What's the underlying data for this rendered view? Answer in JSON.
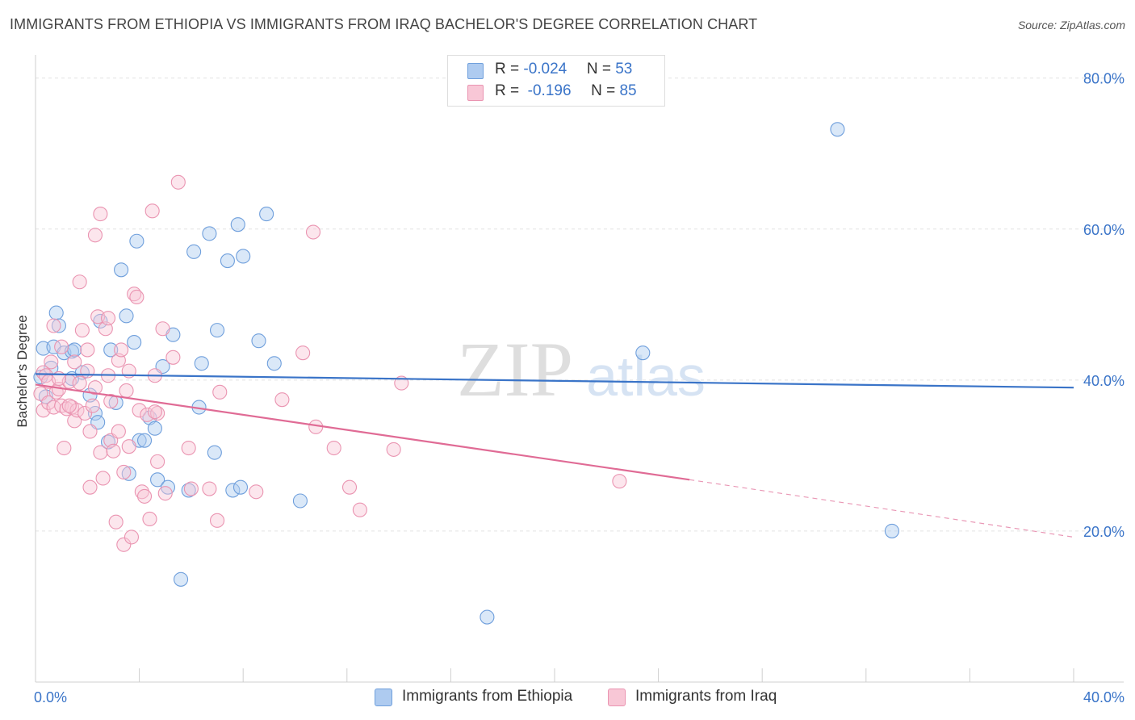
{
  "header": {
    "title": "IMMIGRANTS FROM ETHIOPIA VS IMMIGRANTS FROM IRAQ BACHELOR'S DEGREE CORRELATION CHART",
    "source": "Source: ZipAtlas.com"
  },
  "watermark": {
    "zip": "ZIP",
    "atlas": "atlas"
  },
  "legend": {
    "rows": [
      {
        "r_label": "R = ",
        "r_value": "-0.024",
        "n_label": "N = ",
        "n_value": "53",
        "color": "#aecbf0",
        "border": "#6f9fdc"
      },
      {
        "r_label": "R = ",
        "r_value": " -0.196",
        "n_label": "N = ",
        "n_value": "85",
        "color": "#f8c7d6",
        "border": "#ea94b1"
      }
    ]
  },
  "bottom_legend": [
    {
      "label": "Immigrants from Ethiopia",
      "color": "#aecbf0",
      "border": "#6f9fdc"
    },
    {
      "label": "Immigrants from Iraq",
      "color": "#f8c7d6",
      "border": "#ea94b1"
    }
  ],
  "chart_data": {
    "type": "scatter",
    "title": "IMMIGRANTS FROM ETHIOPIA VS IMMIGRANTS FROM IRAQ BACHELOR'S DEGREE CORRELATION CHART",
    "xlabel": "",
    "ylabel": "Bachelor's Degree",
    "xlim": [
      0,
      40
    ],
    "ylim": [
      0,
      82
    ],
    "x_tick_labels": [
      {
        "value": 0,
        "label": "0.0%"
      },
      {
        "value": 40,
        "label": "40.0%"
      }
    ],
    "y_tick_labels": [
      {
        "value": 20,
        "label": "20.0%"
      },
      {
        "value": 40,
        "label": "40.0%"
      },
      {
        "value": 60,
        "label": "60.0%"
      },
      {
        "value": 80,
        "label": "80.0%"
      }
    ],
    "x_minor_ticks": [
      0,
      4,
      8,
      12,
      16,
      20,
      24,
      28,
      32,
      36,
      40
    ],
    "grid": true,
    "series": [
      {
        "name": "Immigrants from Ethiopia",
        "color": "#6f9fdc",
        "fill": "#aecbf0",
        "trend": {
          "x0": 0,
          "y0": 40.8,
          "x1": 40,
          "y1": 39.0,
          "color": "#3a74c8"
        },
        "points": [
          [
            0.3,
            44.2
          ],
          [
            0.4,
            37.8
          ],
          [
            0.6,
            41.6
          ],
          [
            0.7,
            44.4
          ],
          [
            0.8,
            48.9
          ],
          [
            0.9,
            47.2
          ],
          [
            1.1,
            43.6
          ],
          [
            1.4,
            43.8
          ],
          [
            1.5,
            44.0
          ],
          [
            1.4,
            40.2
          ],
          [
            1.8,
            41.0
          ],
          [
            2.1,
            38.0
          ],
          [
            2.3,
            35.6
          ],
          [
            2.4,
            34.4
          ],
          [
            2.5,
            47.8
          ],
          [
            2.8,
            31.8
          ],
          [
            2.9,
            44.0
          ],
          [
            3.1,
            37.0
          ],
          [
            3.3,
            54.6
          ],
          [
            3.5,
            48.5
          ],
          [
            3.6,
            27.6
          ],
          [
            3.8,
            45.0
          ],
          [
            3.9,
            58.4
          ],
          [
            4.0,
            32.0
          ],
          [
            4.2,
            32.0
          ],
          [
            4.4,
            35.0
          ],
          [
            4.6,
            33.6
          ],
          [
            4.7,
            26.8
          ],
          [
            4.9,
            41.8
          ],
          [
            5.1,
            25.8
          ],
          [
            5.3,
            46.0
          ],
          [
            5.6,
            13.6
          ],
          [
            5.9,
            25.4
          ],
          [
            6.1,
            57.0
          ],
          [
            6.3,
            36.4
          ],
          [
            6.4,
            42.2
          ],
          [
            6.7,
            59.4
          ],
          [
            6.9,
            30.4
          ],
          [
            7.0,
            46.6
          ],
          [
            7.4,
            55.8
          ],
          [
            7.6,
            25.4
          ],
          [
            7.8,
            60.6
          ],
          [
            7.9,
            25.8
          ],
          [
            8.0,
            56.4
          ],
          [
            8.6,
            45.2
          ],
          [
            8.9,
            62.0
          ],
          [
            9.2,
            42.2
          ],
          [
            10.2,
            24.0
          ],
          [
            17.4,
            8.6
          ],
          [
            23.4,
            43.6
          ],
          [
            30.9,
            73.2
          ],
          [
            33.0,
            20.0
          ],
          [
            0.2,
            40.4
          ]
        ]
      },
      {
        "name": "Immigrants from Iraq",
        "color": "#ea94b1",
        "fill": "#f8c7d6",
        "trend": {
          "x0": 0,
          "y0": 39.4,
          "x1": 25.2,
          "y1": 26.8,
          "color": "#e06b95"
        },
        "trend_extension": {
          "x0": 25.2,
          "y0": 26.8,
          "x1": 40,
          "y1": 19.2
        },
        "points": [
          [
            0.2,
            38.2
          ],
          [
            0.3,
            36.0
          ],
          [
            0.3,
            41.0
          ],
          [
            0.4,
            40.6
          ],
          [
            0.5,
            39.8
          ],
          [
            0.5,
            37.0
          ],
          [
            0.6,
            42.4
          ],
          [
            0.7,
            36.4
          ],
          [
            0.7,
            47.2
          ],
          [
            0.8,
            38.4
          ],
          [
            0.9,
            38.8
          ],
          [
            1.0,
            36.6
          ],
          [
            1.0,
            44.4
          ],
          [
            1.1,
            31.0
          ],
          [
            1.2,
            36.2
          ],
          [
            1.3,
            39.8
          ],
          [
            1.4,
            36.4
          ],
          [
            1.5,
            42.4
          ],
          [
            1.5,
            34.6
          ],
          [
            1.6,
            36.0
          ],
          [
            1.7,
            53.0
          ],
          [
            1.7,
            39.6
          ],
          [
            1.8,
            46.6
          ],
          [
            1.9,
            35.6
          ],
          [
            2.0,
            44.0
          ],
          [
            2.0,
            41.2
          ],
          [
            2.1,
            25.8
          ],
          [
            2.1,
            33.2
          ],
          [
            2.2,
            36.6
          ],
          [
            2.3,
            39.0
          ],
          [
            2.3,
            59.2
          ],
          [
            2.4,
            48.4
          ],
          [
            2.5,
            30.4
          ],
          [
            2.5,
            62.0
          ],
          [
            2.6,
            27.0
          ],
          [
            2.7,
            46.8
          ],
          [
            2.8,
            40.6
          ],
          [
            2.8,
            48.2
          ],
          [
            2.9,
            32.0
          ],
          [
            3.0,
            30.6
          ],
          [
            3.1,
            21.2
          ],
          [
            3.2,
            42.6
          ],
          [
            3.2,
            33.2
          ],
          [
            3.3,
            44.0
          ],
          [
            3.4,
            27.8
          ],
          [
            3.4,
            18.2
          ],
          [
            3.5,
            38.6
          ],
          [
            3.6,
            31.2
          ],
          [
            3.6,
            41.2
          ],
          [
            3.7,
            19.2
          ],
          [
            3.8,
            51.4
          ],
          [
            3.9,
            51.0
          ],
          [
            4.0,
            36.0
          ],
          [
            4.1,
            25.2
          ],
          [
            4.2,
            24.6
          ],
          [
            4.3,
            35.4
          ],
          [
            4.4,
            21.6
          ],
          [
            4.5,
            62.4
          ],
          [
            4.6,
            40.6
          ],
          [
            4.7,
            35.6
          ],
          [
            4.7,
            29.2
          ],
          [
            4.9,
            46.8
          ],
          [
            5.0,
            25.0
          ],
          [
            5.3,
            43.0
          ],
          [
            5.5,
            66.2
          ],
          [
            5.9,
            31.0
          ],
          [
            6.0,
            25.6
          ],
          [
            6.7,
            25.6
          ],
          [
            7.0,
            21.4
          ],
          [
            7.1,
            38.4
          ],
          [
            8.5,
            25.2
          ],
          [
            9.5,
            37.4
          ],
          [
            10.3,
            43.6
          ],
          [
            10.7,
            59.6
          ],
          [
            10.8,
            33.8
          ],
          [
            11.5,
            31.0
          ],
          [
            12.1,
            25.8
          ],
          [
            12.5,
            22.8
          ],
          [
            13.8,
            30.8
          ],
          [
            14.1,
            39.6
          ],
          [
            22.5,
            26.6
          ],
          [
            0.9,
            40.2
          ],
          [
            1.3,
            36.6
          ],
          [
            2.9,
            37.2
          ],
          [
            4.6,
            35.8
          ]
        ]
      }
    ]
  }
}
